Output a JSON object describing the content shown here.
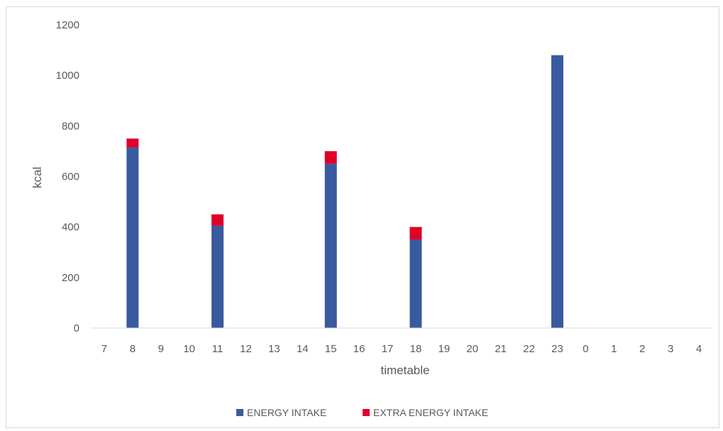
{
  "chart_data": {
    "type": "bar",
    "stacked": true,
    "xlabel": "timetable",
    "ylabel": "kcal",
    "ylim": [
      0,
      1200
    ],
    "yticks": [
      0,
      200,
      400,
      600,
      800,
      1000,
      1200
    ],
    "grid": false,
    "legend_position": "bottom",
    "categories": [
      "7",
      "8",
      "9",
      "10",
      "11",
      "12",
      "13",
      "14",
      "15",
      "16",
      "17",
      "18",
      "19",
      "20",
      "21",
      "22",
      "23",
      "0",
      "1",
      "2",
      "3",
      "4"
    ],
    "series": [
      {
        "name": "ENERGY INTAKE",
        "color": "#3a5aa0",
        "values": [
          0,
          715,
          0,
          0,
          405,
          0,
          0,
          0,
          650,
          0,
          0,
          350,
          0,
          0,
          0,
          0,
          1080,
          0,
          0,
          0,
          0,
          0
        ]
      },
      {
        "name": "EXTRA ENERGY INTAKE",
        "color": "#e0002a",
        "values": [
          0,
          35,
          0,
          0,
          45,
          0,
          0,
          0,
          50,
          0,
          0,
          50,
          0,
          0,
          0,
          0,
          0,
          0,
          0,
          0,
          0,
          0
        ]
      }
    ]
  }
}
